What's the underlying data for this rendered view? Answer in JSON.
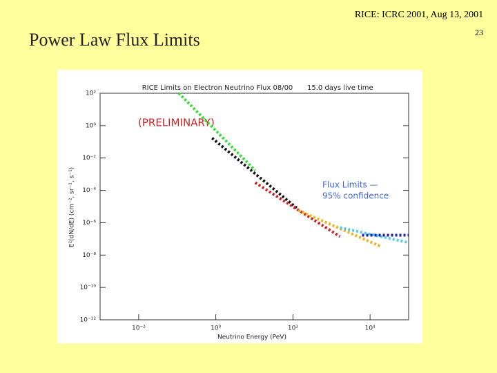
{
  "header": {
    "conference": "RICE: ICRC 2001, Aug 13, 2001",
    "page_number": "23",
    "title": "Power Law Flux Limits"
  },
  "chart_data": {
    "type": "line",
    "title": "RICE Limits on Electron Neutrino Flux 08/00",
    "subtitle": "15.0 days live time",
    "annotations": [
      "(PRELIMINARY)",
      "Flux Limits —",
      "95% confidence"
    ],
    "xlabel": "Neutrino Energy (PeV)",
    "ylabel": "E²(dN/dE) (cm⁻², sr⁻¹, s⁻¹)",
    "xscale": "log",
    "yscale": "log",
    "xlim": [
      0.001,
      100000
    ],
    "ylim": [
      1e-12,
      100
    ],
    "xticks": [
      {
        "value": 0.01,
        "label": "10⁻²"
      },
      {
        "value": 1,
        "label": "10⁰"
      },
      {
        "value": 100,
        "label": "10²"
      },
      {
        "value": 10000,
        "label": "10⁴"
      }
    ],
    "yticks": [
      {
        "value": 100,
        "label": "10²"
      },
      {
        "value": 1,
        "label": "10⁰"
      },
      {
        "value": 0.01,
        "label": "10⁻²"
      },
      {
        "value": 0.0001,
        "label": "10⁻⁴"
      },
      {
        "value": 1e-06,
        "label": "10⁻⁶"
      },
      {
        "value": 1e-08,
        "label": "10⁻⁸"
      },
      {
        "value": 1e-10,
        "label": "10⁻¹⁰"
      },
      {
        "value": 1e-12,
        "label": "10⁻¹²"
      }
    ],
    "series": [
      {
        "color": "#33dd33",
        "x": [
          0.11,
          10.5
        ],
        "values": [
          100,
          0.0017
        ]
      },
      {
        "color": "#111111",
        "x": [
          0.8,
          126
        ],
        "values": [
          0.17,
          8e-06
        ]
      },
      {
        "color": "#cc2222",
        "x": [
          10.5,
          1660
        ],
        "values": [
          0.0003,
          1.4e-07
        ]
      },
      {
        "color": "#f0b020",
        "x": [
          138,
          20000
        ],
        "values": [
          5.9e-06,
          3.2e-08
        ]
      },
      {
        "color": "#55ccee",
        "x": [
          1660,
          100000
        ],
        "values": [
          5e-07,
          5.9e-08
        ]
      },
      {
        "color": "#2222aa",
        "x": [
          6200,
          100000
        ],
        "values": [
          1.7e-07,
          1.7e-07
        ]
      }
    ]
  }
}
